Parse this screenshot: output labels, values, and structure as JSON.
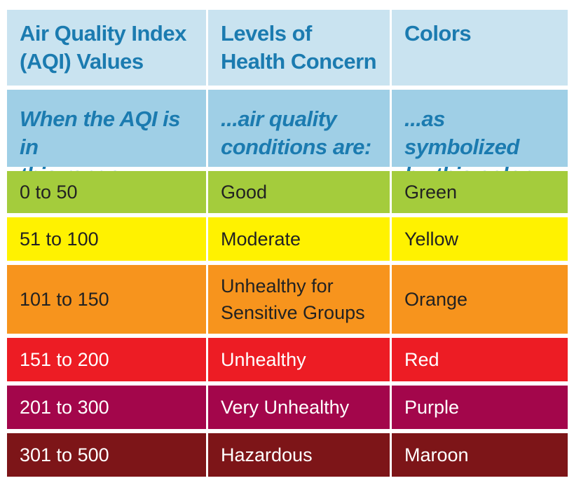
{
  "table": {
    "headers": [
      {
        "line1": "Air Quality Index",
        "line2": "(AQI) Values"
      },
      {
        "line1": "Levels of",
        "line2": "Health Concern"
      },
      {
        "line1": "Colors",
        "line2": ""
      }
    ],
    "subheaders": [
      {
        "line1": "When the AQI is in",
        "line2": "this range:"
      },
      {
        "line1": "...air quality",
        "line2": "conditions are:"
      },
      {
        "line1": "...as symbolized",
        "line2": "by this color:"
      }
    ],
    "rows": [
      {
        "range": "0 to 50",
        "concern_line1": "Good",
        "concern_line2": "",
        "color_name": "Green",
        "bg": "#a4cc3c",
        "fg": "#222222"
      },
      {
        "range": "51 to 100",
        "concern_line1": "Moderate",
        "concern_line2": "",
        "color_name": "Yellow",
        "bg": "#fff200",
        "fg": "#222222"
      },
      {
        "range": "101 to 150",
        "concern_line1": "Unhealthy for",
        "concern_line2": "Sensitive Groups",
        "color_name": "Orange",
        "bg": "#f7941d",
        "fg": "#222222"
      },
      {
        "range": "151 to 200",
        "concern_line1": "Unhealthy",
        "concern_line2": "",
        "color_name": "Red",
        "bg": "#ed1c24",
        "fg": "#ffffff"
      },
      {
        "range": "201 to 300",
        "concern_line1": "Very Unhealthy",
        "concern_line2": "",
        "color_name": "Purple",
        "bg": "#a3064b",
        "fg": "#ffffff"
      },
      {
        "range": "301 to 500",
        "concern_line1": "Hazardous",
        "concern_line2": "",
        "color_name": "Maroon",
        "bg": "#7d1518",
        "fg": "#ffffff"
      }
    ]
  }
}
